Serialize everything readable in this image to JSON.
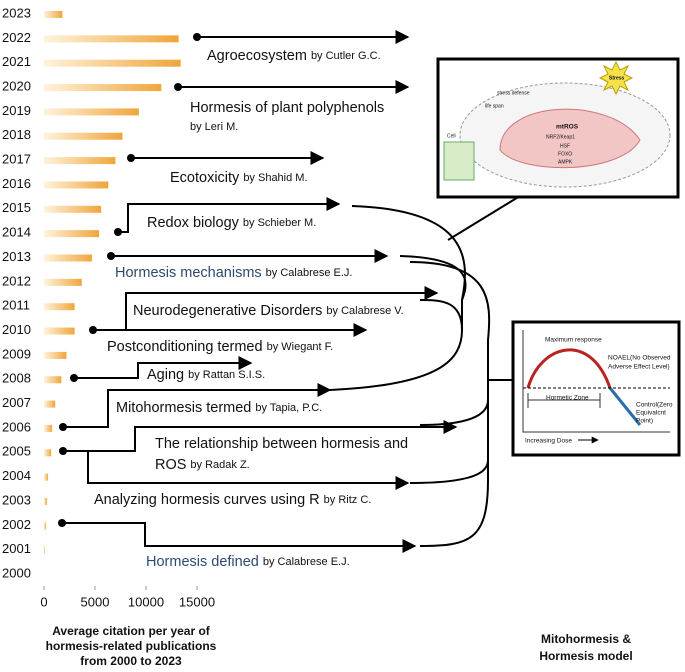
{
  "chart_data": {
    "type": "hbar",
    "categories": [
      "2023",
      "2022",
      "2021",
      "2020",
      "2019",
      "2018",
      "2017",
      "2016",
      "2015",
      "2014",
      "2013",
      "2012",
      "2011",
      "2010",
      "2009",
      "2008",
      "2007",
      "2006",
      "2005",
      "2004",
      "2003",
      "2002",
      "2001",
      "2000"
    ],
    "values": [
      1800,
      13200,
      13400,
      11500,
      9300,
      7700,
      7000,
      6300,
      5600,
      5400,
      4700,
      3700,
      3000,
      3000,
      2200,
      1700,
      1100,
      800,
      700,
      400,
      300,
      200,
      100,
      0
    ],
    "color": "#f0a53a",
    "xlim": [
      0,
      15000
    ],
    "xticks": [
      0,
      5000,
      10000,
      15000
    ],
    "xlabel": [
      "Average citation per year of",
      "hormesis-related publications",
      "from 2000 to 2023"
    ],
    "annotations": [
      {
        "text": [
          "Agroecosystem"
        ],
        "author": "by Cutler G.C."
      },
      {
        "text": [
          "Hormesis of plant polyphenols"
        ],
        "author": "by Leri M."
      },
      {
        "text": [
          "Ecotoxicity"
        ],
        "author": "by Shahid M."
      },
      {
        "text": [
          "Redox biology"
        ],
        "author": "by Schieber  M."
      },
      {
        "text": [
          "Hormesis mechanisms"
        ],
        "author": "by Calabrese E.J.",
        "color": "#2e4a6e"
      },
      {
        "text": [
          "Neurodegenerative Disorders"
        ],
        "author": "by Calabrese V."
      },
      {
        "text": [
          "Postconditioning termed"
        ],
        "author": "by Wiegant F."
      },
      {
        "text": [
          "Aging"
        ],
        "author": "by Rattan S.I.S."
      },
      {
        "text": [
          "Mitohormesis termed"
        ],
        "author": "by Tapia, P.C."
      },
      {
        "text": [
          "The relationship between hormesis and",
          "ROS"
        ],
        "author": "by Radak Z."
      },
      {
        "text": [
          "Analyzing hormesis curves using R"
        ],
        "author": "by Ritz C."
      },
      {
        "text": [
          "Hormesis defined"
        ],
        "author": "by Calabrese E.J.",
        "color": "#2e4a6e"
      }
    ]
  },
  "insets": {
    "mitochondria": [
      "stress defense",
      "life span",
      "mtROS",
      "NRF2/Keap1",
      "HSF",
      "FOXO",
      "AMPK",
      "Cell",
      "Stress"
    ],
    "hormesis_curve": [
      "Maximum response",
      "NOAEL(No Observed",
      "Adverse Effect Level)",
      "Hormetic Zone",
      "Control(Zero",
      "Equivalcnt",
      "Point)",
      "Increasing Dose"
    ],
    "caption": [
      "Mitohormesis &",
      "Hormesis model"
    ]
  }
}
